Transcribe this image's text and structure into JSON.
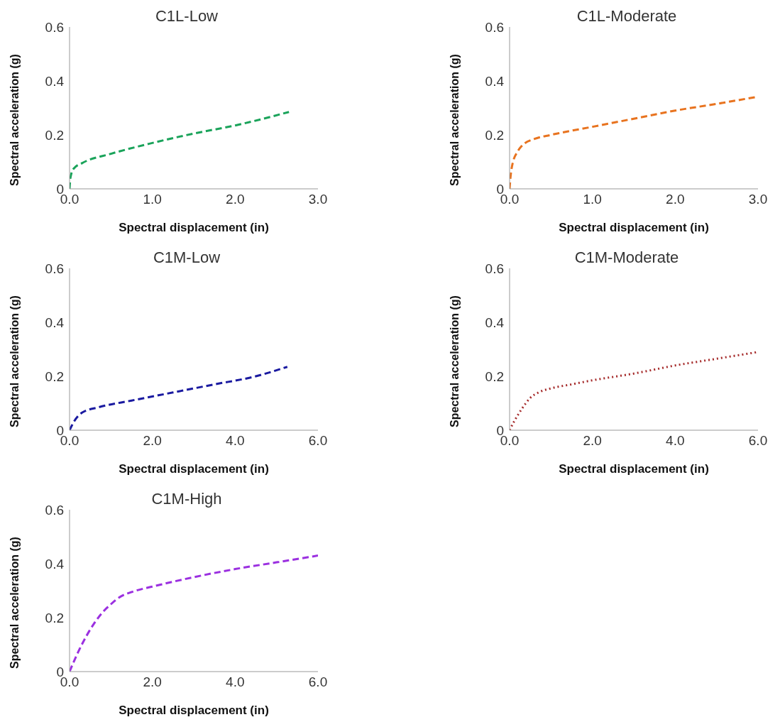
{
  "chart_data": [
    {
      "type": "line",
      "title": "C1L-Low",
      "xlabel": "Spectral displacement (in)",
      "ylabel": "Spectral acceleration (g)",
      "color": "#1aa35a",
      "line_style": "dashed",
      "x": [
        0,
        0.01,
        0.05,
        0.15,
        0.5,
        1.0,
        1.5,
        2.0,
        2.65
      ],
      "values": [
        0,
        0.04,
        0.075,
        0.095,
        0.13,
        0.17,
        0.205,
        0.235,
        0.285
      ],
      "xlim": [
        0,
        3
      ],
      "xticks": [
        {
          "value": 0,
          "label": "0.0"
        },
        {
          "value": 1,
          "label": "1.0"
        },
        {
          "value": 2,
          "label": "2.0"
        },
        {
          "value": 3,
          "label": "3.0"
        }
      ],
      "ylim": [
        0,
        0.6
      ],
      "yticks": [
        0,
        0.2,
        0.4,
        0.6
      ]
    },
    {
      "type": "line",
      "title": "C1L-Moderate",
      "xlabel": "Spectral displacement (in)",
      "ylabel": "Spectral acceleration (g)",
      "color": "#e8731f",
      "line_style": "dashed",
      "x": [
        0,
        0.01,
        0.03,
        0.1,
        0.15,
        0.3,
        0.5,
        1.0,
        1.5,
        2.0,
        2.5,
        2.97
      ],
      "values": [
        0,
        0.04,
        0.085,
        0.14,
        0.16,
        0.185,
        0.2,
        0.23,
        0.26,
        0.29,
        0.315,
        0.34
      ],
      "xlim": [
        0,
        3
      ],
      "xticks": [
        {
          "value": 0,
          "label": "0.0"
        },
        {
          "value": 1,
          "label": "1.0"
        },
        {
          "value": 2,
          "label": "2.0"
        },
        {
          "value": 3,
          "label": "3.0"
        }
      ],
      "ylim": [
        0,
        0.6
      ],
      "yticks": [
        0,
        0.2,
        0.4,
        0.6
      ]
    },
    {
      "type": "line",
      "title": "C1M-Low",
      "xlabel": "Spectral displacement (in)",
      "ylabel": "Spectral acceleration (g)",
      "color": "#1a1aa0",
      "line_style": "dashed",
      "x": [
        0,
        0.1,
        0.3,
        0.7,
        1.5,
        2.5,
        3.5,
        4.5,
        5.26
      ],
      "values": [
        0,
        0.03,
        0.065,
        0.085,
        0.11,
        0.14,
        0.17,
        0.2,
        0.235
      ],
      "xlim": [
        0,
        6
      ],
      "xticks": [
        {
          "value": 0,
          "label": "0.0"
        },
        {
          "value": 2,
          "label": "2.0"
        },
        {
          "value": 4,
          "label": "4.0"
        },
        {
          "value": 6,
          "label": "6.0"
        }
      ],
      "ylim": [
        0,
        0.6
      ],
      "yticks": [
        0,
        0.2,
        0.4,
        0.6
      ]
    },
    {
      "type": "line",
      "title": "C1M-Moderate",
      "xlabel": "Spectral displacement (in)",
      "ylabel": "Spectral acceleration (g)",
      "color": "#a52a2a",
      "line_style": "dotted",
      "x": [
        0,
        0.1,
        0.3,
        0.5,
        0.7,
        1.0,
        1.5,
        2,
        3,
        4,
        5,
        6
      ],
      "values": [
        0,
        0.03,
        0.08,
        0.12,
        0.14,
        0.155,
        0.17,
        0.185,
        0.21,
        0.24,
        0.265,
        0.29
      ],
      "xlim": [
        0,
        6
      ],
      "xticks": [
        {
          "value": 0,
          "label": "0.0"
        },
        {
          "value": 2,
          "label": "2.0"
        },
        {
          "value": 4,
          "label": "4.0"
        },
        {
          "value": 6,
          "label": "6.0"
        }
      ],
      "ylim": [
        0,
        0.6
      ],
      "yticks": [
        0,
        0.2,
        0.4,
        0.6
      ]
    },
    {
      "type": "line",
      "title": "C1M-High",
      "xlabel": "Spectral displacement (in)",
      "ylabel": "Spectral acceleration (g)",
      "color": "#9b30e0",
      "line_style": "dashed",
      "x": [
        0,
        0.2,
        0.4,
        0.6,
        0.8,
        1.0,
        1.2,
        1.5,
        2,
        3,
        4,
        5,
        6
      ],
      "values": [
        0,
        0.07,
        0.13,
        0.18,
        0.22,
        0.25,
        0.275,
        0.295,
        0.315,
        0.35,
        0.38,
        0.405,
        0.43
      ],
      "xlim": [
        0,
        6
      ],
      "xticks": [
        {
          "value": 0,
          "label": "0.0"
        },
        {
          "value": 2,
          "label": "2.0"
        },
        {
          "value": 4,
          "label": "4.0"
        },
        {
          "value": 6,
          "label": "6.0"
        }
      ],
      "ylim": [
        0,
        0.6
      ],
      "yticks": [
        0,
        0.2,
        0.4,
        0.6
      ]
    }
  ]
}
